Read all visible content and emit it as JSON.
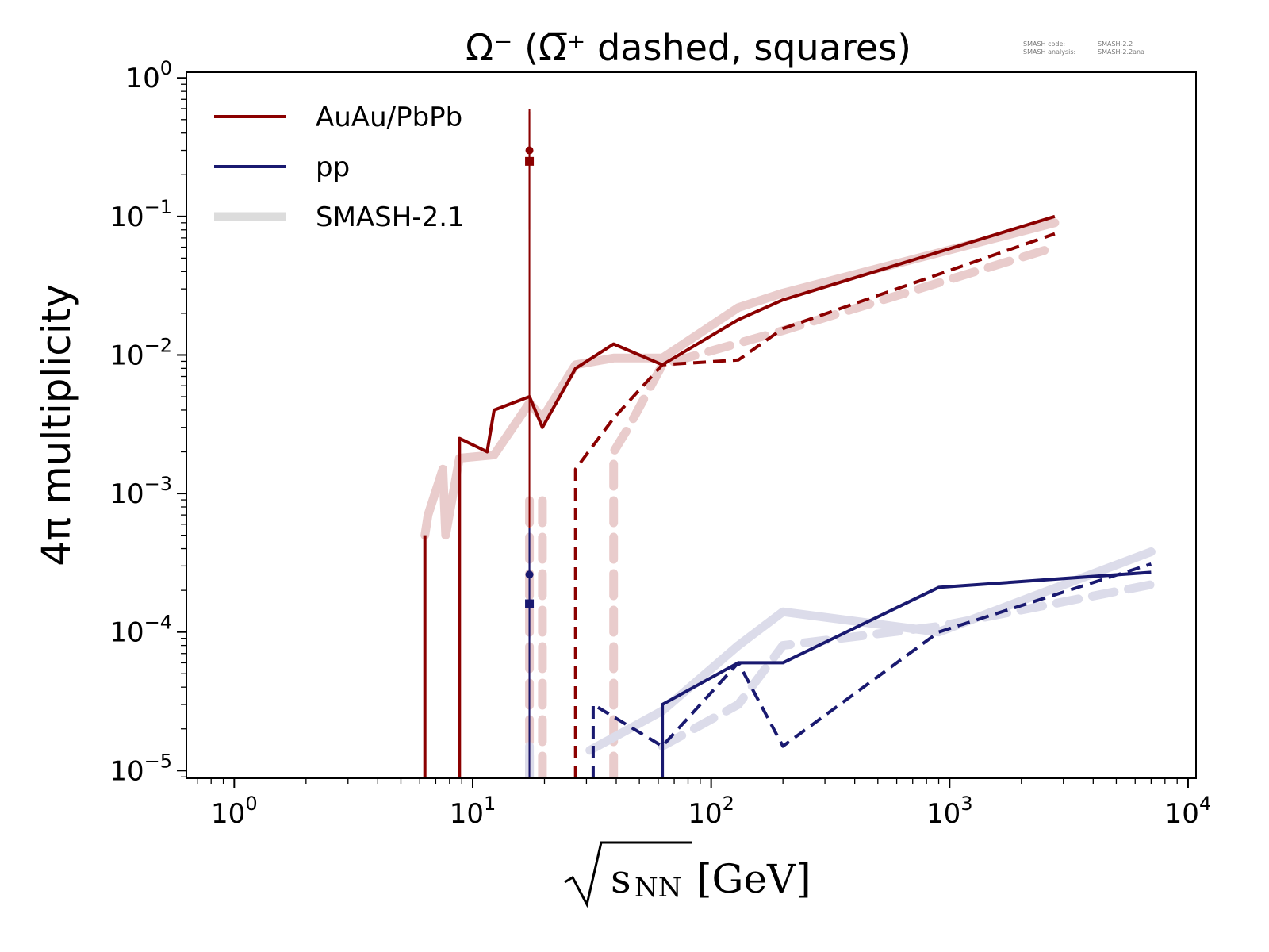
{
  "chart_data": {
    "type": "line",
    "title": "Ω⁻ (Ω̅⁺ dashed, squares)",
    "xlabel_radicand": "s",
    "xlabel_subscript": "NN",
    "xlabel_unit": "[GeV]",
    "ylabel": "4π multiplicity",
    "xscale": "log",
    "yscale": "log",
    "xlim": [
      0.63,
      10800
    ],
    "ylim": [
      8.8e-06,
      1.1
    ],
    "x_ticks": [
      {
        "value": 1,
        "base": "10",
        "exp": "0"
      },
      {
        "value": 10,
        "base": "10",
        "exp": "1"
      },
      {
        "value": 100,
        "base": "10",
        "exp": "2"
      },
      {
        "value": 1000,
        "base": "10",
        "exp": "3"
      },
      {
        "value": 10000,
        "base": "10",
        "exp": "4"
      }
    ],
    "y_ticks": [
      {
        "value": 1,
        "base": "10",
        "exp": "0"
      },
      {
        "value": 0.1,
        "base": "10",
        "exp": "−1"
      },
      {
        "value": 0.01,
        "base": "10",
        "exp": "−2"
      },
      {
        "value": 0.001,
        "base": "10",
        "exp": "−3"
      },
      {
        "value": 0.0001,
        "base": "10",
        "exp": "−4"
      },
      {
        "value": 1e-05,
        "base": "10",
        "exp": "−5"
      }
    ],
    "legend": {
      "placement": "top-left",
      "entries": [
        {
          "label": "AuAu/PbPb",
          "color": "#8b0000"
        },
        {
          "label": "pp",
          "color": "#191970"
        },
        {
          "label": "SMASH-2.1",
          "color": "#dcdcdc"
        }
      ]
    },
    "version_info": [
      {
        "label": "SMASH code:",
        "value": "SMASH-2.2"
      },
      {
        "label": "SMASH analysis:",
        "value": "SMASH-2.2ana"
      }
    ],
    "series": [
      {
        "group": "AuAu/PbPb",
        "style": "solid",
        "layer": "SMASH-2.1",
        "color": "#e9cccc",
        "x": [
          6.3,
          6.5,
          7.5,
          7.7,
          8.8,
          12.3,
          17.3,
          19.6,
          27,
          39,
          62.4,
          130,
          200,
          2760
        ],
        "y": [
          0.0005,
          0.0007,
          0.0015,
          0.0005,
          0.0018,
          0.0019,
          0.0045,
          0.0035,
          0.0085,
          0.0095,
          0.0095,
          0.022,
          0.028,
          0.09
        ]
      },
      {
        "group": "AuAu/PbPb",
        "style": "dashed",
        "layer": "SMASH-2.1",
        "color": "#e9cccc",
        "x": [
          39,
          39,
          45,
          62.4,
          200,
          2760
        ],
        "y": [
          8.8e-06,
          0.002,
          0.003,
          0.0085,
          0.015,
          0.06
        ]
      },
      {
        "group": "AuAu/PbPb",
        "style": "dashed",
        "layer": "SMASH-2.1",
        "color": "#e9cccc",
        "x": [
          17.3,
          17.3
        ],
        "y": [
          8.8e-06,
          0.001
        ]
      },
      {
        "group": "AuAu/PbPb",
        "style": "dashed",
        "layer": "SMASH-2.1",
        "color": "#e9cccc",
        "x": [
          19.6,
          19.6
        ],
        "y": [
          8.8e-06,
          0.001
        ]
      },
      {
        "group": "pp",
        "style": "solid",
        "layer": "SMASH-2.1",
        "color": "#dcdcea",
        "x": [
          17.3,
          17.3
        ],
        "y": [
          8.8e-06,
          1.5e-05
        ]
      },
      {
        "group": "pp",
        "style": "solid",
        "layer": "SMASH-2.1",
        "color": "#dcdcea",
        "x": [
          31,
          62.4,
          130,
          200,
          900,
          7000
        ],
        "y": [
          1.4e-05,
          2.7e-05,
          8e-05,
          0.00014,
          0.0001,
          0.00038
        ]
      },
      {
        "group": "pp",
        "style": "dashed",
        "layer": "SMASH-2.1",
        "color": "#dcdcea",
        "x": [
          62.4,
          130,
          200,
          900,
          7000
        ],
        "y": [
          1.5e-05,
          3e-05,
          8e-05,
          0.00011,
          0.00022
        ]
      },
      {
        "group": "AuAu/PbPb",
        "style": "solid",
        "layer": "SMASH-2.2",
        "color": "#8b0000",
        "x": [
          6.3,
          6.3
        ],
        "y": [
          8.8e-06,
          0.0005
        ]
      },
      {
        "group": "AuAu/PbPb",
        "style": "solid",
        "layer": "SMASH-2.2",
        "color": "#8b0000",
        "x": [
          8.8,
          8.8,
          11.5,
          12.3,
          17.3,
          19.6,
          27,
          39,
          62.4,
          130,
          200,
          2760
        ],
        "y": [
          8.8e-06,
          0.0025,
          0.002,
          0.004,
          0.005,
          0.003,
          0.008,
          0.012,
          0.0085,
          0.018,
          0.025,
          0.1
        ]
      },
      {
        "group": "AuAu/PbPb",
        "style": "dashed",
        "layer": "SMASH-2.2",
        "color": "#8b0000",
        "x": [
          27,
          27,
          39,
          62.4,
          130,
          200,
          2760
        ],
        "y": [
          8.8e-06,
          0.0015,
          0.0035,
          0.0085,
          0.0092,
          0.0155,
          0.075
        ]
      },
      {
        "group": "pp",
        "style": "solid",
        "layer": "SMASH-2.2",
        "color": "#191970",
        "x": [
          62.4,
          62.4,
          130,
          200,
          900,
          7000
        ],
        "y": [
          8.8e-06,
          3e-05,
          6e-05,
          6e-05,
          0.00021,
          0.00027
        ]
      },
      {
        "group": "pp",
        "style": "dashed",
        "layer": "SMASH-2.2",
        "color": "#191970",
        "x": [
          32,
          32,
          62.4,
          130,
          200,
          900,
          7000
        ],
        "y": [
          8.8e-06,
          3e-05,
          1.5e-05,
          6e-05,
          1.5e-05,
          0.0001,
          0.00031
        ]
      }
    ],
    "experimental_data": [
      {
        "group": "AuAu/PbPb",
        "marker": "circle",
        "color": "#8b0000",
        "x": 17.3,
        "y": 0.3,
        "yerr_low": 0.3,
        "yerr_high": 0.3
      },
      {
        "group": "AuAu/PbPb",
        "marker": "square",
        "color": "#8b0000",
        "x": 17.3,
        "y": 0.25,
        "yerr_low": 0.17,
        "yerr_high": 0.32
      },
      {
        "group": "pp",
        "marker": "circle",
        "color": "#191970",
        "x": 17.3,
        "y": 0.00026,
        "yerr_low": 0.00026,
        "yerr_high": 0.00026
      },
      {
        "group": "pp",
        "marker": "square",
        "color": "#191970",
        "x": 17.3,
        "y": 0.00016,
        "yerr_low": 7e-05,
        "yerr_high": 0.0004
      }
    ]
  }
}
